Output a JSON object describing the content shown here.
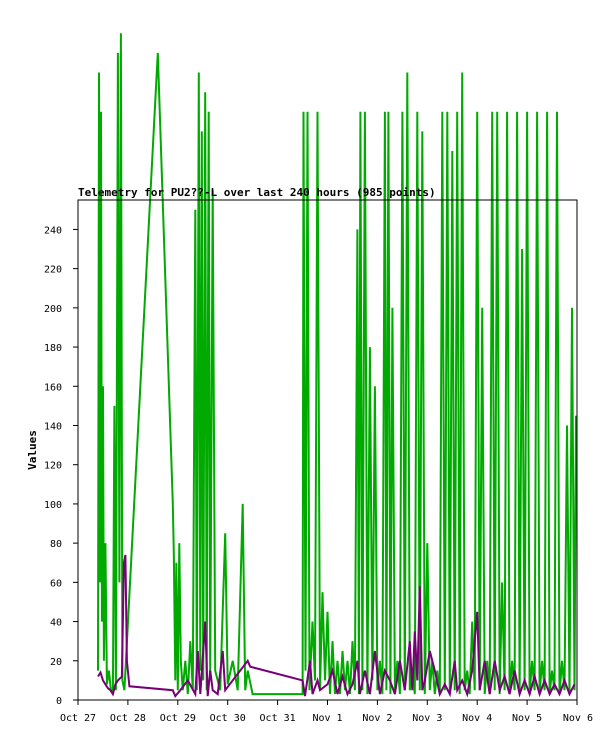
{
  "chart_data": {
    "type": "line",
    "title": "Telemetry for PU2??-L over last 240 hours (985 points)",
    "xlabel": "",
    "ylabel": "Values",
    "ylim": [
      0,
      255
    ],
    "yticks": [
      0,
      20,
      40,
      60,
      80,
      100,
      120,
      140,
      160,
      180,
      200,
      220,
      240
    ],
    "xlim_days": [
      0,
      10
    ],
    "xticks": [
      {
        "day": 0,
        "label": "Oct 27"
      },
      {
        "day": 1,
        "label": "Oct 28"
      },
      {
        "day": 2,
        "label": "Oct 29"
      },
      {
        "day": 3,
        "label": "Oct 30"
      },
      {
        "day": 4,
        "label": "Oct 31"
      },
      {
        "day": 5,
        "label": "Nov 1"
      },
      {
        "day": 6,
        "label": "Nov 2"
      },
      {
        "day": 7,
        "label": "Nov 3"
      },
      {
        "day": 8,
        "label": "Nov 4"
      },
      {
        "day": 9,
        "label": "Nov 5"
      },
      {
        "day": 10,
        "label": "Nov 6"
      }
    ],
    "grid": false,
    "series": [
      {
        "color": "#00aa00",
        "points": [
          [
            0.4,
            15
          ],
          [
            0.42,
            320
          ],
          [
            0.44,
            60
          ],
          [
            0.46,
            300
          ],
          [
            0.48,
            40
          ],
          [
            0.5,
            160
          ],
          [
            0.52,
            20
          ],
          [
            0.55,
            80
          ],
          [
            0.58,
            8
          ],
          [
            0.62,
            15
          ],
          [
            0.66,
            5
          ],
          [
            0.7,
            3
          ],
          [
            0.73,
            150
          ],
          [
            0.76,
            5
          ],
          [
            0.8,
            330
          ],
          [
            0.83,
            60
          ],
          [
            0.86,
            340
          ],
          [
            0.89,
            10
          ],
          [
            0.93,
            5
          ],
          [
            1.6,
            330
          ],
          [
            1.9,
            100
          ],
          [
            1.92,
            75
          ],
          [
            1.95,
            10
          ],
          [
            1.97,
            70
          ],
          [
            2.0,
            5
          ],
          [
            2.03,
            80
          ],
          [
            2.06,
            20
          ],
          [
            2.1,
            5
          ],
          [
            2.15,
            20
          ],
          [
            2.2,
            3
          ],
          [
            2.25,
            30
          ],
          [
            2.3,
            5
          ],
          [
            2.35,
            250
          ],
          [
            2.38,
            5
          ],
          [
            2.42,
            320
          ],
          [
            2.45,
            15
          ],
          [
            2.48,
            290
          ],
          [
            2.51,
            10
          ],
          [
            2.55,
            310
          ],
          [
            2.58,
            5
          ],
          [
            2.62,
            300
          ],
          [
            2.65,
            10
          ],
          [
            2.7,
            260
          ],
          [
            2.75,
            15
          ],
          [
            2.85,
            5
          ],
          [
            2.95,
            85
          ],
          [
            3.0,
            8
          ],
          [
            3.1,
            20
          ],
          [
            3.2,
            5
          ],
          [
            3.3,
            100
          ],
          [
            3.35,
            5
          ],
          [
            3.4,
            15
          ],
          [
            3.5,
            3
          ],
          [
            4.5,
            3
          ],
          [
            4.52,
            300
          ],
          [
            4.56,
            15
          ],
          [
            4.6,
            300
          ],
          [
            4.64,
            5
          ],
          [
            4.7,
            40
          ],
          [
            4.75,
            10
          ],
          [
            4.8,
            300
          ],
          [
            4.85,
            5
          ],
          [
            4.9,
            55
          ],
          [
            4.95,
            10
          ],
          [
            5.0,
            45
          ],
          [
            5.05,
            3
          ],
          [
            5.1,
            30
          ],
          [
            5.15,
            3
          ],
          [
            5.2,
            20
          ],
          [
            5.25,
            3
          ],
          [
            5.3,
            25
          ],
          [
            5.35,
            5
          ],
          [
            5.4,
            20
          ],
          [
            5.45,
            3
          ],
          [
            5.5,
            30
          ],
          [
            5.55,
            5
          ],
          [
            5.6,
            240
          ],
          [
            5.63,
            3
          ],
          [
            5.66,
            300
          ],
          [
            5.7,
            5
          ],
          [
            5.75,
            300
          ],
          [
            5.8,
            3
          ],
          [
            5.85,
            180
          ],
          [
            5.9,
            10
          ],
          [
            5.95,
            160
          ],
          [
            6.0,
            5
          ],
          [
            6.05,
            20
          ],
          [
            6.1,
            3
          ],
          [
            6.15,
            300
          ],
          [
            6.18,
            5
          ],
          [
            6.22,
            300
          ],
          [
            6.26,
            3
          ],
          [
            6.3,
            200
          ],
          [
            6.35,
            5
          ],
          [
            6.4,
            20
          ],
          [
            6.45,
            3
          ],
          [
            6.5,
            300
          ],
          [
            6.55,
            5
          ],
          [
            6.6,
            320
          ],
          [
            6.65,
            5
          ],
          [
            6.7,
            15
          ],
          [
            6.75,
            3
          ],
          [
            6.8,
            300
          ],
          [
            6.85,
            5
          ],
          [
            6.9,
            290
          ],
          [
            6.95,
            3
          ],
          [
            7.0,
            80
          ],
          [
            7.05,
            5
          ],
          [
            7.1,
            20
          ],
          [
            7.15,
            3
          ],
          [
            7.2,
            15
          ],
          [
            7.25,
            3
          ],
          [
            7.3,
            300
          ],
          [
            7.35,
            5
          ],
          [
            7.4,
            300
          ],
          [
            7.45,
            3
          ],
          [
            7.5,
            280
          ],
          [
            7.55,
            5
          ],
          [
            7.6,
            300
          ],
          [
            7.65,
            3
          ],
          [
            7.7,
            320
          ],
          [
            7.75,
            5
          ],
          [
            7.8,
            15
          ],
          [
            7.85,
            3
          ],
          [
            7.9,
            40
          ],
          [
            7.95,
            5
          ],
          [
            8.0,
            300
          ],
          [
            8.05,
            5
          ],
          [
            8.1,
            200
          ],
          [
            8.15,
            3
          ],
          [
            8.2,
            20
          ],
          [
            8.25,
            3
          ],
          [
            8.3,
            300
          ],
          [
            8.35,
            5
          ],
          [
            8.4,
            300
          ],
          [
            8.45,
            3
          ],
          [
            8.5,
            60
          ],
          [
            8.55,
            5
          ],
          [
            8.6,
            300
          ],
          [
            8.65,
            3
          ],
          [
            8.7,
            20
          ],
          [
            8.75,
            5
          ],
          [
            8.8,
            300
          ],
          [
            8.85,
            3
          ],
          [
            8.9,
            230
          ],
          [
            8.95,
            5
          ],
          [
            9.0,
            300
          ],
          [
            9.05,
            3
          ],
          [
            9.1,
            20
          ],
          [
            9.15,
            5
          ],
          [
            9.2,
            300
          ],
          [
            9.25,
            3
          ],
          [
            9.3,
            20
          ],
          [
            9.35,
            5
          ],
          [
            9.4,
            300
          ],
          [
            9.45,
            3
          ],
          [
            9.5,
            15
          ],
          [
            9.55,
            5
          ],
          [
            9.6,
            300
          ],
          [
            9.65,
            3
          ],
          [
            9.7,
            20
          ],
          [
            9.75,
            5
          ],
          [
            9.8,
            140
          ],
          [
            9.85,
            3
          ],
          [
            9.9,
            200
          ],
          [
            9.95,
            5
          ],
          [
            9.98,
            145
          ]
        ]
      },
      {
        "color": "#770077",
        "points": [
          [
            0.4,
            12
          ],
          [
            0.45,
            14
          ],
          [
            0.5,
            10
          ],
          [
            0.55,
            8
          ],
          [
            0.6,
            6
          ],
          [
            0.65,
            5
          ],
          [
            0.7,
            3
          ],
          [
            0.75,
            8
          ],
          [
            0.8,
            10
          ],
          [
            0.88,
            12
          ],
          [
            0.92,
            70
          ],
          [
            0.95,
            74
          ],
          [
            0.98,
            20
          ],
          [
            1.03,
            7
          ],
          [
            1.9,
            5
          ],
          [
            1.95,
            2
          ],
          [
            2.05,
            5
          ],
          [
            2.2,
            10
          ],
          [
            2.35,
            3
          ],
          [
            2.4,
            25
          ],
          [
            2.45,
            3
          ],
          [
            2.55,
            40
          ],
          [
            2.6,
            2
          ],
          [
            2.65,
            15
          ],
          [
            2.7,
            5
          ],
          [
            2.8,
            3
          ],
          [
            2.9,
            25
          ],
          [
            2.95,
            5
          ],
          [
            3.4,
            20
          ],
          [
            3.45,
            17
          ],
          [
            4.5,
            10
          ],
          [
            4.55,
            2
          ],
          [
            4.65,
            20
          ],
          [
            4.7,
            3
          ],
          [
            4.8,
            10
          ],
          [
            4.85,
            5
          ],
          [
            5.0,
            8
          ],
          [
            5.1,
            15
          ],
          [
            5.2,
            3
          ],
          [
            5.3,
            12
          ],
          [
            5.4,
            3
          ],
          [
            5.5,
            8
          ],
          [
            5.6,
            20
          ],
          [
            5.65,
            3
          ],
          [
            5.75,
            15
          ],
          [
            5.85,
            3
          ],
          [
            5.95,
            25
          ],
          [
            6.05,
            3
          ],
          [
            6.15,
            15
          ],
          [
            6.25,
            10
          ],
          [
            6.35,
            3
          ],
          [
            6.45,
            20
          ],
          [
            6.55,
            5
          ],
          [
            6.65,
            30
          ],
          [
            6.7,
            5
          ],
          [
            6.75,
            35
          ],
          [
            6.8,
            10
          ],
          [
            6.85,
            58
          ],
          [
            6.9,
            5
          ],
          [
            6.95,
            10
          ],
          [
            7.05,
            25
          ],
          [
            7.15,
            15
          ],
          [
            7.25,
            3
          ],
          [
            7.35,
            8
          ],
          [
            7.45,
            3
          ],
          [
            7.55,
            20
          ],
          [
            7.6,
            5
          ],
          [
            7.7,
            10
          ],
          [
            7.8,
            3
          ],
          [
            7.9,
            15
          ],
          [
            8.0,
            45
          ],
          [
            8.05,
            5
          ],
          [
            8.15,
            20
          ],
          [
            8.25,
            3
          ],
          [
            8.35,
            20
          ],
          [
            8.45,
            5
          ],
          [
            8.55,
            12
          ],
          [
            8.65,
            3
          ],
          [
            8.75,
            15
          ],
          [
            8.85,
            3
          ],
          [
            8.95,
            10
          ],
          [
            9.05,
            3
          ],
          [
            9.15,
            12
          ],
          [
            9.25,
            3
          ],
          [
            9.35,
            10
          ],
          [
            9.45,
            3
          ],
          [
            9.55,
            8
          ],
          [
            9.65,
            3
          ],
          [
            9.75,
            10
          ],
          [
            9.85,
            3
          ],
          [
            9.95,
            8
          ]
        ]
      }
    ]
  }
}
